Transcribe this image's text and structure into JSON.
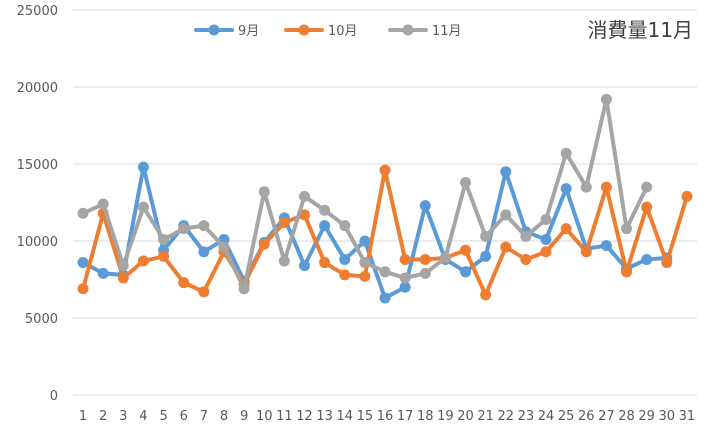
{
  "chart_data": {
    "type": "line",
    "title": "消費量11月",
    "x": [
      "1",
      "2",
      "3",
      "4",
      "5",
      "6",
      "7",
      "8",
      "9",
      "10",
      "11",
      "12",
      "13",
      "14",
      "15",
      "16",
      "17",
      "18",
      "19",
      "20",
      "21",
      "22",
      "23",
      "24",
      "25",
      "26",
      "27",
      "28",
      "29",
      "30",
      "31"
    ],
    "ylim": [
      0,
      25000
    ],
    "yticks": [
      0,
      5000,
      10000,
      15000,
      20000,
      25000
    ],
    "grid": true,
    "legend_position": "top",
    "series": [
      {
        "name": "9月",
        "color": "#5b9bd5",
        "values": [
          8600,
          7900,
          7800,
          14800,
          9400,
          11000,
          9300,
          10100,
          7400,
          9900,
          11500,
          8400,
          11000,
          8800,
          10000,
          6300,
          7000,
          12300,
          8800,
          8000,
          9000,
          14500,
          10600,
          10100,
          13400,
          9500,
          9700,
          8200,
          8800,
          8900,
          null
        ]
      },
      {
        "name": "10月",
        "color": "#ed7d31",
        "values": [
          6900,
          11800,
          7600,
          8700,
          9000,
          7300,
          6700,
          9300,
          7200,
          9800,
          11200,
          11700,
          8600,
          7800,
          7700,
          14600,
          8800,
          8800,
          8900,
          9400,
          6500,
          9600,
          8800,
          9300,
          10800,
          9300,
          13500,
          8000,
          12200,
          8600,
          12900
        ]
      },
      {
        "name": "11月",
        "color": "#a5a5a5",
        "values": [
          11800,
          12400,
          8400,
          12200,
          10100,
          10800,
          11000,
          9600,
          6900,
          13200,
          8700,
          12900,
          12000,
          11000,
          8600,
          8000,
          7600,
          7900,
          8900,
          13800,
          10300,
          11700,
          10300,
          11400,
          15700,
          13500,
          19200,
          10800,
          13500,
          null,
          null
        ]
      }
    ]
  }
}
